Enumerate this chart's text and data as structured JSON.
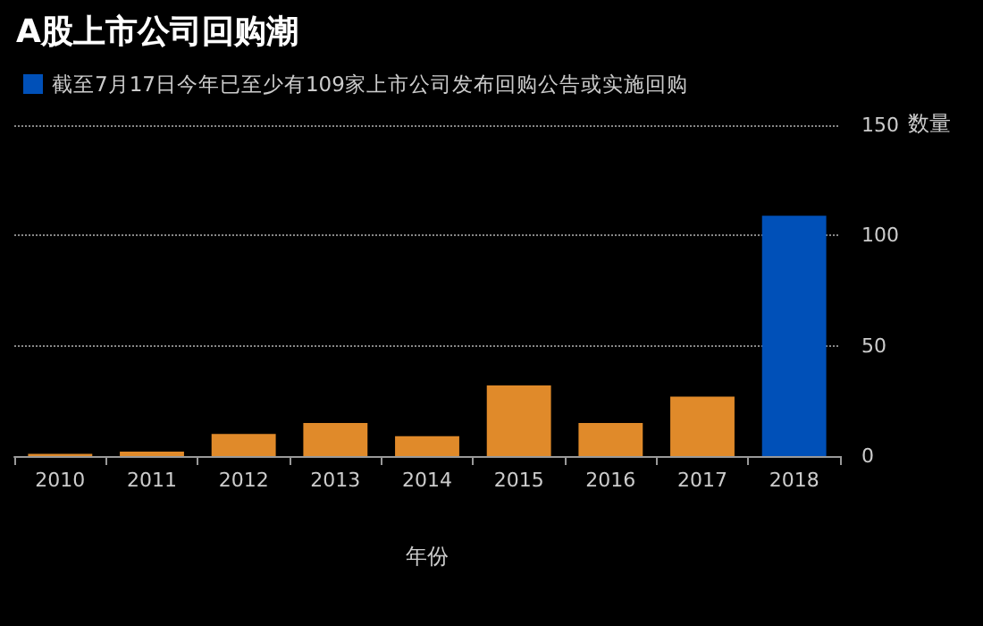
{
  "chart_data": {
    "type": "bar",
    "title": "A股上市公司回购潮",
    "xlabel": "年份",
    "ylabel": "数量",
    "categories": [
      "2010",
      "2011",
      "2012",
      "2013",
      "2014",
      "2015",
      "2016",
      "2017",
      "2018"
    ],
    "series": [
      {
        "color": "#e08a2a",
        "values": [
          1,
          2,
          10,
          15,
          9,
          32,
          15,
          27,
          null
        ]
      },
      {
        "name": "截至7月17日今年已至少有109家上市公司发布回购公告或实施回购",
        "color": "#0050b8",
        "values": [
          null,
          null,
          null,
          null,
          null,
          null,
          null,
          null,
          109
        ]
      }
    ],
    "ylim": [
      0,
      150
    ],
    "yticks": [
      0,
      50,
      100,
      150
    ],
    "grid": "y",
    "legend": "top left"
  }
}
